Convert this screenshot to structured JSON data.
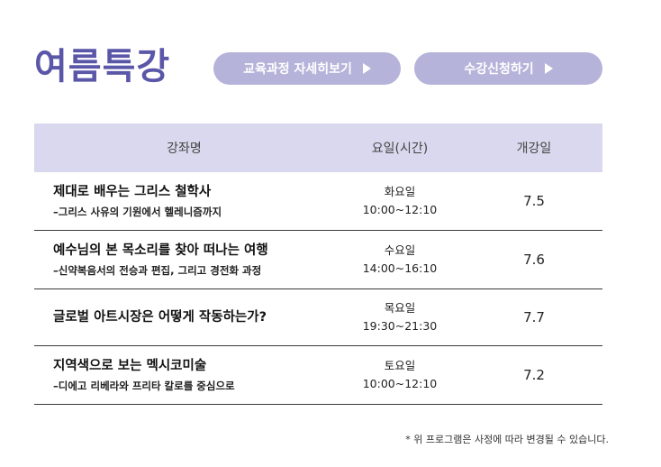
{
  "page_title": "여름특강",
  "buttons": {
    "curriculum": "교육과정 자세히보기",
    "apply": "수강신청하기"
  },
  "table": {
    "headers": [
      "강좌명",
      "요일(시간)",
      "개강일"
    ],
    "rows": [
      {
        "title": "제대로 배우는 그리스 철학사",
        "subtitle": "–그리스 사유의 기원에서 헬레니즘까지",
        "day": "화요일",
        "time": "10:00~12:10",
        "start": "7.5"
      },
      {
        "title": "예수님의 본 목소리를 찾아 떠나는 여행",
        "subtitle": "–신약복음서의 전승과 편집, 그리고 경전화 과정",
        "day": "수요일",
        "time": "14:00~16:10",
        "start": "7.6"
      },
      {
        "title": "글로벌 아트시장은 어떻게 작동하는가?",
        "subtitle": "",
        "day": "목요일",
        "time": "19:30~21:30",
        "start": "7.7"
      },
      {
        "title": "지역색으로 보는 멕시코미술",
        "subtitle": "–디에고 리베라와 프리타 칼로를 중심으로",
        "day": "토요일",
        "time": "10:00~12:10",
        "start": "7.2"
      }
    ]
  },
  "note": "* 위 프로그램은 사정에 따라 변경될 수 있습니다.",
  "colors": {
    "title": "#5b57a8",
    "button_bg": "#b5b3d9",
    "header_bg": "#d9d8ee"
  },
  "icons": {
    "button_arrow": "play-triangle-right"
  }
}
